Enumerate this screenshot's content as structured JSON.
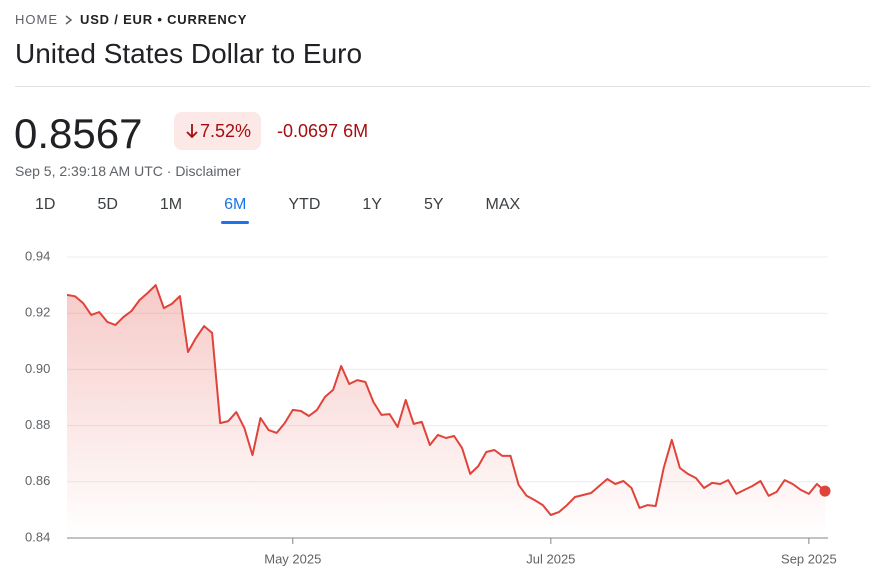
{
  "header": {
    "breadcrumb": [
      "HOME",
      "USD / EUR • CURRENCY"
    ],
    "title": "United States Dollar to Euro"
  },
  "quote": {
    "price": "0.8567",
    "change_percent": "7.52%",
    "change": "-0.0697",
    "period": "6M",
    "timestamp": "Sep 5, 2:39:18 AM UTC",
    "disclaimer": "Disclaimer"
  },
  "tabs": [
    {
      "label": "1D"
    },
    {
      "label": "5D"
    },
    {
      "label": "1M"
    },
    {
      "label": "6M",
      "selected": true
    },
    {
      "label": "YTD"
    },
    {
      "label": "1Y"
    },
    {
      "label": "5Y"
    },
    {
      "label": "MAX"
    }
  ],
  "chart_data": {
    "type": "line",
    "color": "#e0433a",
    "area": true,
    "grid": true,
    "ylim": [
      0.84,
      0.94
    ],
    "yticks": [
      0.84,
      0.86,
      0.88,
      {
        "value": 0.9,
        "label": "0.90"
      },
      0.92,
      0.94
    ],
    "categories": [
      null,
      null,
      null,
      null,
      null,
      null,
      null,
      null,
      null,
      null,
      null,
      null,
      null,
      null,
      null,
      null,
      null,
      null,
      null,
      null,
      null,
      null,
      null,
      null,
      null,
      null,
      null,
      null,
      "May 2025",
      null,
      null,
      null,
      null,
      null,
      null,
      null,
      null,
      null,
      null,
      null,
      null,
      null,
      null,
      null,
      null,
      null,
      null,
      null,
      null,
      null,
      null,
      null,
      null,
      null,
      null,
      null,
      null,
      null,
      null,
      null,
      "Jul 2025",
      null,
      null,
      null,
      null,
      null,
      null,
      null,
      null,
      null,
      null,
      null,
      null,
      null,
      null,
      null,
      null,
      null,
      null,
      null,
      null,
      null,
      null,
      null,
      null,
      null,
      null,
      null,
      null,
      null,
      null,
      null,
      "Sep 2025",
      null,
      null
    ],
    "values": [
      0.9265,
      0.926,
      0.9236,
      0.9194,
      0.9204,
      0.9169,
      0.9158,
      0.9186,
      0.9208,
      0.9247,
      0.9272,
      0.93,
      0.9218,
      0.9233,
      0.9261,
      0.9062,
      0.9112,
      0.9154,
      0.913,
      0.8809,
      0.8816,
      0.8848,
      0.8791,
      0.8695,
      0.8827,
      0.8784,
      0.8774,
      0.8809,
      0.8856,
      0.8852,
      0.8834,
      0.8856,
      0.8902,
      0.8927,
      0.9012,
      0.8948,
      0.8962,
      0.8955,
      0.8884,
      0.8838,
      0.8841,
      0.8795,
      0.8891,
      0.8806,
      0.8813,
      0.8731,
      0.8767,
      0.8756,
      0.8763,
      0.872,
      0.8628,
      0.8656,
      0.8706,
      0.8713,
      0.8692,
      0.8692,
      0.8589,
      0.855,
      0.8535,
      0.8517,
      0.8482,
      0.8492,
      0.8517,
      0.8546,
      0.8553,
      0.856,
      0.8585,
      0.861,
      0.8592,
      0.8603,
      0.8578,
      0.8507,
      0.8517,
      0.8514,
      0.8649,
      0.8749,
      0.8649,
      0.8628,
      0.8613,
      0.8578,
      0.8596,
      0.8592,
      0.8606,
      0.8557,
      0.8571,
      0.8585,
      0.8603,
      0.855,
      0.8564,
      0.8606,
      0.8592,
      0.8571,
      0.8557,
      0.8592,
      0.8567
    ]
  }
}
